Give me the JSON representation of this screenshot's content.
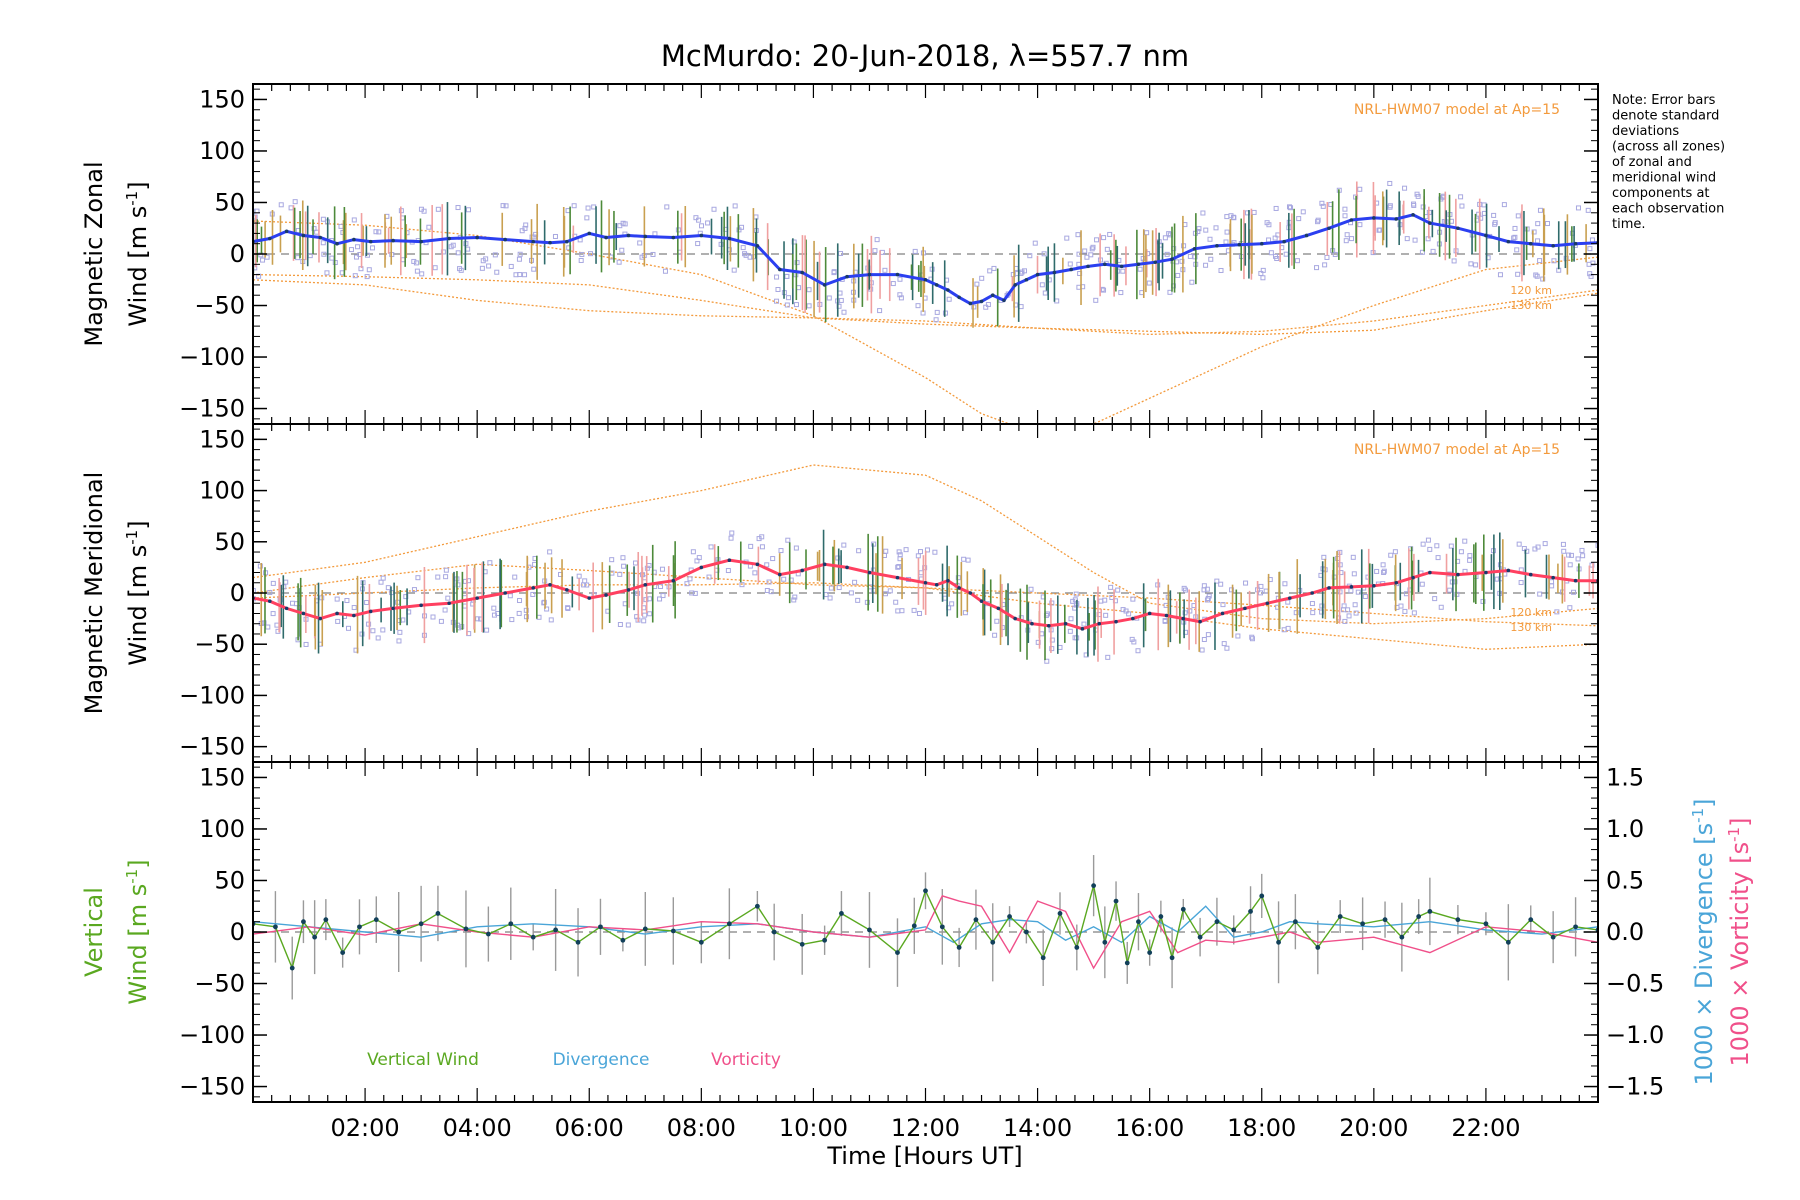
{
  "chart_data": {
    "type": "line",
    "title": "McMurdo: 20-Jun-2018, λ=557.7 nm",
    "xlabel": "Time [Hours UT]",
    "xlim": [
      0,
      24
    ],
    "x_ticks": [
      2,
      4,
      6,
      8,
      10,
      12,
      14,
      16,
      18,
      20,
      22
    ],
    "x_tick_labels": [
      "02:00",
      "04:00",
      "06:00",
      "08:00",
      "10:00",
      "12:00",
      "14:00",
      "16:00",
      "18:00",
      "20:00",
      "22:00"
    ],
    "note_lines": [
      "Note: Error bars",
      "denote standard",
      "deviations",
      "(across all zones)",
      "of zonal and",
      "meridional wind",
      "components at",
      "each observation",
      "time."
    ],
    "colors": {
      "zonal": "#2b3ff0",
      "meridional": "#ff4060",
      "vertical": "#5aa820",
      "divergence": "#4aa5d8",
      "vorticity": "#f0508a",
      "model": "#f39a3c",
      "scatter": "#a8a8e0"
    },
    "panels": [
      {
        "id": "zonal",
        "ylabel_line1": "Magnetic Zonal",
        "ylabel_line2": "Wind [m s",
        "ylabel_sup": "-1",
        "ylabel_close": "]",
        "ylim": [
          -165,
          165
        ],
        "y_ticks": [
          150,
          100,
          50,
          0,
          -50,
          -100,
          -150
        ],
        "y_tick_labels": [
          "150",
          "100",
          "50",
          "0",
          "−50",
          "−100",
          "−150"
        ],
        "model_label": "NRL-HWM07 model at Ap=15",
        "alt_labels": [
          "120 km",
          "130 km"
        ],
        "series": [
          {
            "name": "Zonal wind",
            "x": [
              0.0,
              0.3,
              0.6,
              0.9,
              1.2,
              1.5,
              1.8,
              2.1,
              2.5,
              3.0,
              3.5,
              4.0,
              4.5,
              5.0,
              5.3,
              5.6,
              6.0,
              6.3,
              6.7,
              7.0,
              7.5,
              8.0,
              8.5,
              9.0,
              9.4,
              9.8,
              10.2,
              10.6,
              11.0,
              11.5,
              12.0,
              12.2,
              12.4,
              12.6,
              12.8,
              13.0,
              13.2,
              13.4,
              13.6,
              13.8,
              14.0,
              14.3,
              14.6,
              14.9,
              15.2,
              15.5,
              15.8,
              16.1,
              16.4,
              16.8,
              17.2,
              17.6,
              18.0,
              18.4,
              18.8,
              19.2,
              19.6,
              20.0,
              20.4,
              20.7,
              21.0,
              21.5,
              22.0,
              22.4,
              22.8,
              23.2,
              23.6,
              24.0
            ],
            "y": [
              12,
              15,
              22,
              18,
              16,
              10,
              14,
              12,
              13,
              12,
              15,
              16,
              14,
              12,
              11,
              12,
              20,
              16,
              18,
              17,
              16,
              18,
              15,
              8,
              -15,
              -18,
              -30,
              -22,
              -20,
              -20,
              -25,
              -30,
              -35,
              -42,
              -48,
              -46,
              -40,
              -45,
              -30,
              -25,
              -20,
              -18,
              -15,
              -12,
              -10,
              -12,
              -10,
              -8,
              -5,
              5,
              8,
              9,
              10,
              12,
              18,
              25,
              33,
              35,
              34,
              38,
              30,
              25,
              18,
              12,
              10,
              8,
              10,
              11
            ]
          }
        ],
        "model_curves": [
          {
            "name": "NRL-HWM07 110 km",
            "x": [
              0,
              2,
              4,
              6,
              8,
              10,
              12,
              13,
              14,
              15,
              16,
              18,
              20,
              22,
              24
            ],
            "y": [
              32,
              28,
              18,
              0,
              -20,
              -60,
              -120,
              -155,
              -175,
              -165,
              -140,
              -90,
              -50,
              -15,
              -3
            ]
          },
          {
            "name": "NRL-HWM07 120 km",
            "x": [
              0,
              2,
              4,
              6,
              8,
              10,
              12,
              14,
              16,
              18,
              20,
              22,
              24
            ],
            "y": [
              -25,
              -30,
              -45,
              -55,
              -60,
              -62,
              -65,
              -72,
              -78,
              -75,
              -65,
              -50,
              -35
            ]
          },
          {
            "name": "NRL-HWM07 130 km",
            "x": [
              0,
              2,
              4,
              6,
              8,
              10,
              12,
              14,
              16,
              18,
              20,
              22,
              24
            ],
            "y": [
              -20,
              -22,
              -25,
              -30,
              -45,
              -62,
              -68,
              -72,
              -75,
              -78,
              -74,
              -55,
              -38
            ]
          }
        ]
      },
      {
        "id": "meridional",
        "ylabel_line1": "Magnetic Meridional",
        "ylabel_line2": "Wind [m s",
        "ylabel_sup": "-1",
        "ylabel_close": "]",
        "ylim": [
          -165,
          165
        ],
        "y_ticks": [
          150,
          100,
          50,
          0,
          -50,
          -100,
          -150
        ],
        "y_tick_labels": [
          "150",
          "100",
          "50",
          "0",
          "−50",
          "−100",
          "−150"
        ],
        "model_label": "NRL-HWM07 model at Ap=15",
        "alt_labels": [
          "120 km",
          "130 km"
        ],
        "series": [
          {
            "name": "Meridional wind",
            "x": [
              0.0,
              0.3,
              0.6,
              0.9,
              1.2,
              1.5,
              1.8,
              2.1,
              2.5,
              3.0,
              3.5,
              4.0,
              4.5,
              5.0,
              5.3,
              5.6,
              6.0,
              6.3,
              6.7,
              7.0,
              7.5,
              8.0,
              8.5,
              9.0,
              9.4,
              9.8,
              10.2,
              10.6,
              11.0,
              11.5,
              12.0,
              12.2,
              12.4,
              12.6,
              12.8,
              13.0,
              13.3,
              13.6,
              13.9,
              14.2,
              14.5,
              14.8,
              15.1,
              15.4,
              15.7,
              16.0,
              16.3,
              16.6,
              16.9,
              17.3,
              17.7,
              18.1,
              18.5,
              18.9,
              19.2,
              19.6,
              20.0,
              20.4,
              20.7,
              21.0,
              21.5,
              22.0,
              22.4,
              22.8,
              23.2,
              23.6,
              24.0
            ],
            "y": [
              -5,
              -8,
              -15,
              -20,
              -25,
              -20,
              -22,
              -18,
              -15,
              -12,
              -10,
              -5,
              0,
              5,
              8,
              3,
              -5,
              -2,
              3,
              8,
              12,
              25,
              32,
              28,
              18,
              22,
              28,
              25,
              20,
              15,
              10,
              8,
              12,
              5,
              0,
              -8,
              -15,
              -25,
              -30,
              -32,
              -30,
              -35,
              -30,
              -28,
              -25,
              -20,
              -22,
              -25,
              -28,
              -20,
              -15,
              -10,
              -5,
              0,
              5,
              6,
              7,
              10,
              15,
              20,
              18,
              20,
              22,
              18,
              15,
              12,
              12
            ]
          }
        ],
        "model_curves": [
          {
            "name": "NRL-HWM07 110 km",
            "x": [
              0,
              2,
              4,
              6,
              8,
              10,
              12,
              13,
              14,
              15,
              16,
              18,
              20,
              22,
              24
            ],
            "y": [
              15,
              30,
              55,
              80,
              100,
              125,
              115,
              90,
              55,
              20,
              -10,
              -25,
              -30,
              -25,
              -15
            ]
          },
          {
            "name": "NRL-HWM07 120 km",
            "x": [
              0,
              2,
              4,
              6,
              8,
              10,
              12,
              14,
              16,
              18,
              20,
              22,
              24
            ],
            "y": [
              0,
              15,
              28,
              22,
              15,
              8,
              5,
              0,
              -5,
              -12,
              -20,
              -28,
              -32
            ]
          },
          {
            "name": "NRL-HWM07 130 km",
            "x": [
              0,
              2,
              4,
              6,
              8,
              10,
              12,
              14,
              16,
              18,
              20,
              22,
              24
            ],
            "y": [
              -5,
              0,
              5,
              8,
              8,
              10,
              5,
              -10,
              -20,
              -35,
              -45,
              -55,
              -50
            ]
          }
        ]
      },
      {
        "id": "vertical",
        "ylabel_line1": "Vertical",
        "ylabel_line2": "Wind [m s",
        "ylabel_sup": "-1",
        "ylabel_close": "]",
        "ylim": [
          -165,
          165
        ],
        "y_ticks": [
          150,
          100,
          50,
          0,
          -50,
          -100,
          -150
        ],
        "y_tick_labels": [
          "150",
          "100",
          "50",
          "0",
          "−50",
          "−100",
          "−150"
        ],
        "right_axis": {
          "ylim": [
            -1.65,
            1.65
          ],
          "y_ticks": [
            1.5,
            1.0,
            0.5,
            0.0,
            -0.5,
            -1.0,
            -1.5
          ],
          "y_tick_labels": [
            "1.5",
            "1.0",
            "0.5",
            "0.0",
            "−0.5",
            "−1.0",
            "−1.5"
          ],
          "label_divergence": "1000 × Divergence [s",
          "label_vorticity": "1000 × Vorticity [s",
          "label_sup": "-1",
          "label_close": "]"
        },
        "legend": [
          "Vertical Wind",
          "Divergence",
          "Vorticity"
        ],
        "series": [
          {
            "name": "Vertical Wind",
            "x": [
              0.0,
              0.4,
              0.7,
              0.9,
              1.1,
              1.3,
              1.6,
              1.9,
              2.2,
              2.6,
              3.0,
              3.3,
              3.8,
              4.2,
              4.6,
              5.0,
              5.4,
              5.8,
              6.2,
              6.6,
              7.0,
              7.5,
              8.0,
              8.5,
              9.0,
              9.3,
              9.8,
              10.2,
              10.5,
              11.0,
              11.5,
              11.8,
              12.0,
              12.3,
              12.6,
              12.9,
              13.2,
              13.5,
              13.8,
              14.1,
              14.4,
              14.7,
              15.0,
              15.2,
              15.4,
              15.6,
              15.8,
              16.0,
              16.2,
              16.4,
              16.6,
              16.9,
              17.2,
              17.5,
              17.8,
              18.0,
              18.3,
              18.6,
              19.0,
              19.4,
              19.8,
              20.2,
              20.5,
              20.8,
              21.0,
              21.5,
              22.0,
              22.4,
              22.8,
              23.2,
              23.6,
              24.0
            ],
            "y": [
              8,
              5,
              -35,
              10,
              -5,
              12,
              -20,
              5,
              12,
              0,
              8,
              18,
              3,
              -2,
              8,
              -5,
              2,
              -10,
              5,
              -8,
              3,
              1,
              -10,
              8,
              25,
              0,
              -12,
              -8,
              18,
              2,
              -20,
              6,
              40,
              5,
              -15,
              12,
              -10,
              15,
              0,
              -25,
              18,
              -15,
              45,
              -10,
              30,
              -30,
              10,
              -20,
              15,
              -25,
              22,
              -5,
              10,
              2,
              20,
              35,
              -10,
              10,
              -15,
              15,
              8,
              12,
              -5,
              15,
              20,
              12,
              8,
              -10,
              12,
              -5,
              5,
              2
            ]
          },
          {
            "name": "Divergence",
            "axis": "right",
            "x": [
              0,
              1,
              2,
              3,
              4,
              5,
              6,
              7,
              8,
              9,
              10,
              11,
              12,
              12.5,
              13,
              13.5,
              14,
              14.5,
              15,
              15.5,
              16,
              16.5,
              17,
              17.5,
              18,
              18.5,
              19,
              20,
              21,
              22,
              23,
              24
            ],
            "y": [
              0.1,
              0.05,
              0.0,
              -0.05,
              0.05,
              0.08,
              0.05,
              -0.02,
              0.05,
              0.08,
              0.0,
              -0.05,
              0.05,
              -0.1,
              0.08,
              0.12,
              0.1,
              -0.08,
              0.05,
              -0.1,
              0.15,
              0.0,
              0.25,
              -0.05,
              0.0,
              0.1,
              0.08,
              0.05,
              0.1,
              0.02,
              -0.02,
              0.05
            ]
          },
          {
            "name": "Vorticity",
            "axis": "right",
            "x": [
              0,
              1,
              2,
              3,
              4,
              5,
              6,
              7,
              8,
              9,
              10,
              11,
              12,
              12.3,
              12.6,
              13,
              13.5,
              14,
              14.5,
              15,
              15.5,
              16,
              16.5,
              17,
              17.5,
              18,
              18.5,
              19,
              20,
              21,
              22,
              23,
              24
            ],
            "y": [
              -0.02,
              0.05,
              -0.03,
              0.08,
              0.0,
              -0.05,
              0.05,
              0.02,
              0.1,
              0.08,
              0.0,
              -0.05,
              0.02,
              0.35,
              0.3,
              0.25,
              -0.2,
              0.3,
              0.2,
              -0.35,
              0.1,
              0.2,
              -0.2,
              -0.08,
              -0.1,
              -0.05,
              0.0,
              -0.1,
              -0.05,
              -0.2,
              0.05,
              0.0,
              -0.1
            ]
          }
        ]
      }
    ]
  }
}
